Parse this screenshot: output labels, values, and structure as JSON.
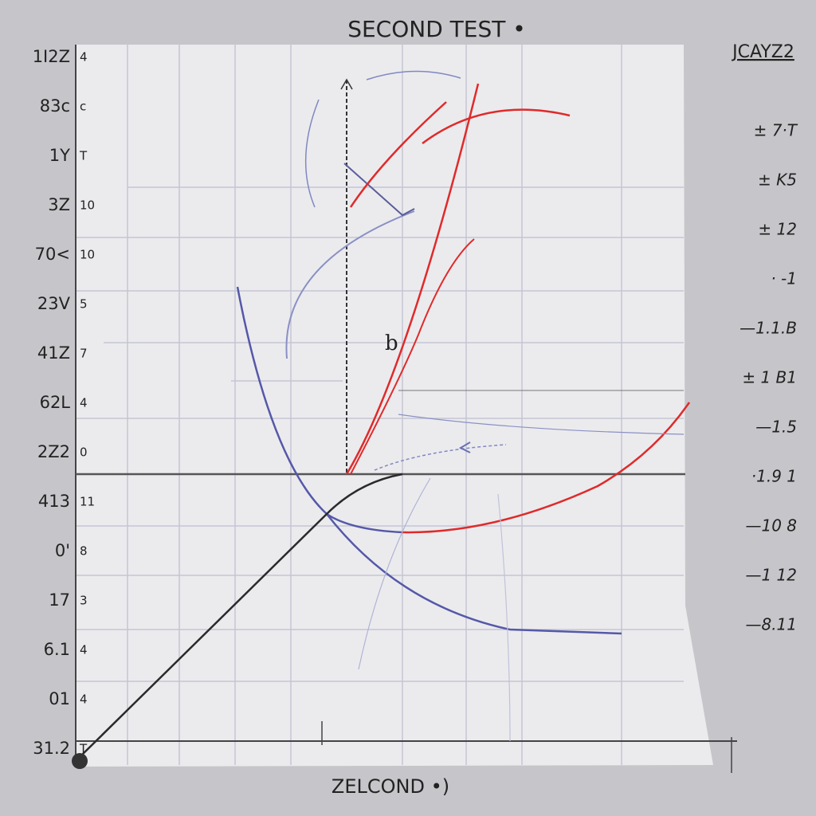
{
  "header": {
    "title": "SECOND TEST •",
    "corner_label": "JCAYZ2"
  },
  "left_labels": [
    "1I2Z",
    "83c",
    "1Y",
    "3Z",
    "70<",
    "23V",
    "41Z",
    "62L",
    "2Z2",
    "413",
    "0'",
    "17",
    "6.1",
    "01",
    "31.2"
  ],
  "left_minor": [
    "4",
    "c",
    "T",
    "10",
    "10",
    "5",
    "7",
    "4",
    "0",
    "11",
    "8",
    "3",
    "4",
    "4",
    "T"
  ],
  "right_labels": [
    "± 7·T",
    "± K5",
    "± 12",
    "· -1",
    "—1.1.B",
    "± 1 B1",
    "—1.5",
    "·1.9 1",
    "—10 8",
    "—1 12",
    "—8.11"
  ],
  "annotation": "b",
  "x_label": "ZELCOND •)"
}
